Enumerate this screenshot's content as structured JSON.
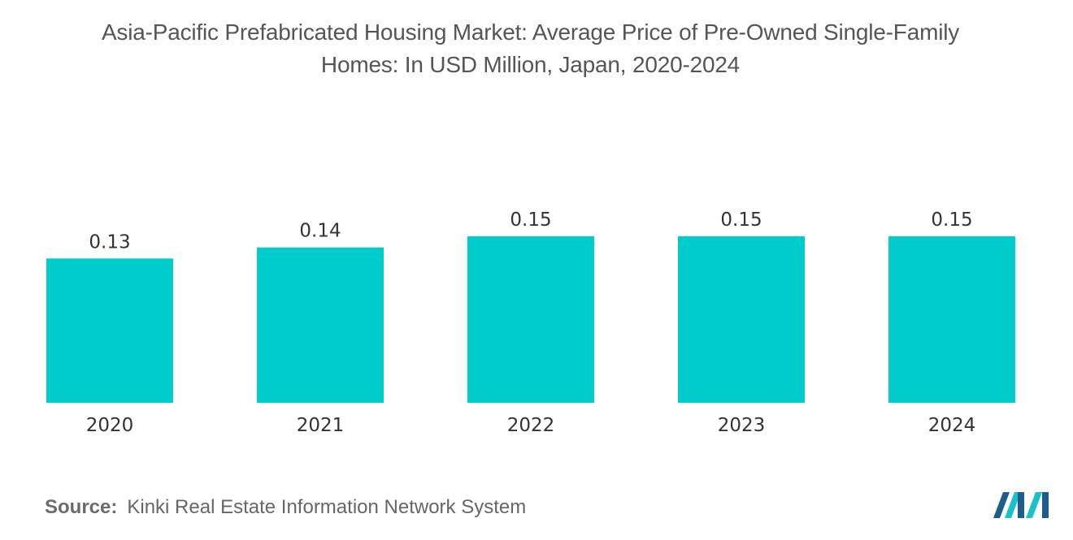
{
  "chart_data": {
    "type": "bar",
    "title_lines": [
      "Asia-Pacific Prefabricated Housing Market: Average Price of Pre-Owned Single-Family",
      "Homes: In USD Million, Japan, 2020-2024"
    ],
    "categories": [
      "2020",
      "2021",
      "2022",
      "2023",
      "2024"
    ],
    "values": [
      0.13,
      0.14,
      0.15,
      0.15,
      0.15
    ],
    "value_labels": [
      "0.13",
      "0.14",
      "0.15",
      "0.15",
      "0.15"
    ],
    "xlabel": "",
    "ylabel": "",
    "ylim": [
      0,
      0.15
    ],
    "grid": false,
    "legend": "none",
    "bar_color": "#00CCCC"
  },
  "source": {
    "label": "Source:",
    "text": "Kinki Real Estate Information Network System"
  },
  "colors": {
    "title": "#555555",
    "axis_text": "#333333",
    "logo_dark": "#1F5C8A",
    "logo_light": "#19C2C9"
  }
}
